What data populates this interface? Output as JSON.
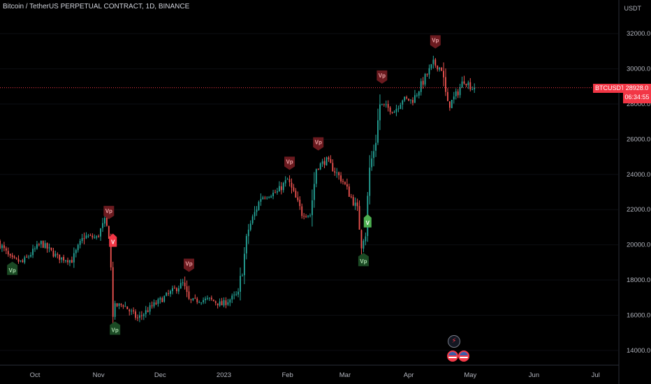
{
  "title": "Bitcoin / TetherUS PERPETUAL CONTRACT, 1D, BINANCE",
  "currency": "USDT",
  "colors": {
    "up": "#26a69a",
    "down": "#ef5350",
    "tag_dark_red": "#6b1a1f",
    "tag_dark_green": "#1b4a24",
    "tag_bright_red": "#f23645",
    "tag_bright_green": "#4caf50",
    "price_line": "#f23645"
  },
  "last_price": {
    "symbol": "BTCUSDT.P",
    "value": "28928.0",
    "countdown": "06:34:55"
  },
  "chart_data": {
    "type": "candlestick",
    "y_ticks": [
      "32000.0",
      "30000.0",
      "28000.0",
      "26000.0",
      "24000.0",
      "22000.0",
      "20000.0",
      "18000.0",
      "16000.0",
      "14000.0"
    ],
    "x_ticks": [
      "Oct",
      "Nov",
      "Dec",
      "2023",
      "Feb",
      "Mar",
      "Apr",
      "May",
      "Jun",
      "Jul"
    ],
    "ylim": [
      13200,
      33200
    ],
    "x_range": [
      "2022-09-14",
      "2023-07-12"
    ],
    "last_price": 28928,
    "price_path": [
      [
        "2022-09-14",
        20200
      ],
      [
        "2022-09-20",
        19200
      ],
      [
        "2022-09-26",
        19000
      ],
      [
        "2022-10-05",
        20100
      ],
      [
        "2022-10-13",
        19300
      ],
      [
        "2022-10-20",
        19100
      ],
      [
        "2022-10-26",
        20500
      ],
      [
        "2022-11-01",
        20400
      ],
      [
        "2022-11-05",
        21300
      ],
      [
        "2022-11-07",
        20600
      ],
      [
        "2022-11-08",
        18500
      ],
      [
        "2022-11-09",
        16500
      ],
      [
        "2022-11-14",
        16600
      ],
      [
        "2022-11-21",
        15800
      ],
      [
        "2022-11-28",
        16500
      ],
      [
        "2022-12-05",
        17100
      ],
      [
        "2022-12-13",
        17800
      ],
      [
        "2022-12-16",
        16800
      ],
      [
        "2022-12-26",
        16900
      ],
      [
        "2023-01-01",
        16600
      ],
      [
        "2023-01-09",
        17200
      ],
      [
        "2023-01-14",
        20900
      ],
      [
        "2023-01-20",
        22700
      ],
      [
        "2023-01-28",
        23000
      ],
      [
        "2023-02-02",
        23700
      ],
      [
        "2023-02-09",
        21800
      ],
      [
        "2023-02-13",
        21700
      ],
      [
        "2023-02-16",
        24400
      ],
      [
        "2023-02-21",
        24800
      ],
      [
        "2023-03-01",
        23600
      ],
      [
        "2023-03-08",
        22000
      ],
      [
        "2023-03-10",
        20200
      ],
      [
        "2023-03-12",
        20600
      ],
      [
        "2023-03-14",
        24300
      ],
      [
        "2023-03-17",
        26000
      ],
      [
        "2023-03-19",
        28000
      ],
      [
        "2023-03-26",
        27600
      ],
      [
        "2023-03-30",
        28300
      ],
      [
        "2023-04-04",
        28200
      ],
      [
        "2023-04-10",
        29500
      ],
      [
        "2023-04-14",
        30300
      ],
      [
        "2023-04-18",
        30000
      ],
      [
        "2023-04-21",
        27800
      ],
      [
        "2023-04-26",
        28700
      ],
      [
        "2023-04-29",
        29400
      ],
      [
        "2023-05-03",
        28900
      ]
    ],
    "signals": [
      {
        "label": "Vp",
        "date": "2022-09-20",
        "price": 19200,
        "pos": "below",
        "style": "dark_green"
      },
      {
        "label": "Vp",
        "date": "2022-11-06",
        "price": 21300,
        "pos": "above",
        "style": "dark_red"
      },
      {
        "label": "V",
        "date": "2022-11-08",
        "price": 20800,
        "pos": "below",
        "style": "bright_red"
      },
      {
        "label": "Vp",
        "date": "2022-11-09",
        "price": 15800,
        "pos": "below",
        "style": "dark_green"
      },
      {
        "label": "Vp",
        "date": "2022-12-15",
        "price": 18300,
        "pos": "above",
        "style": "dark_red"
      },
      {
        "label": "Vp",
        "date": "2023-02-02",
        "price": 24100,
        "pos": "above",
        "style": "dark_red"
      },
      {
        "label": "Vp",
        "date": "2023-02-16",
        "price": 25200,
        "pos": "above",
        "style": "dark_red"
      },
      {
        "label": "Vp",
        "date": "2023-03-10",
        "price": 19700,
        "pos": "below",
        "style": "dark_green"
      },
      {
        "label": "V",
        "date": "2023-03-12",
        "price": 21900,
        "pos": "below",
        "style": "bright_green"
      },
      {
        "label": "Vp",
        "date": "2023-03-19",
        "price": 29000,
        "pos": "above",
        "style": "dark_red"
      },
      {
        "label": "Vp",
        "date": "2023-04-14",
        "price": 31000,
        "pos": "above",
        "style": "dark_red"
      }
    ],
    "event_icons": [
      "lightning-icon",
      "flag-icon",
      "flag-icon"
    ]
  }
}
